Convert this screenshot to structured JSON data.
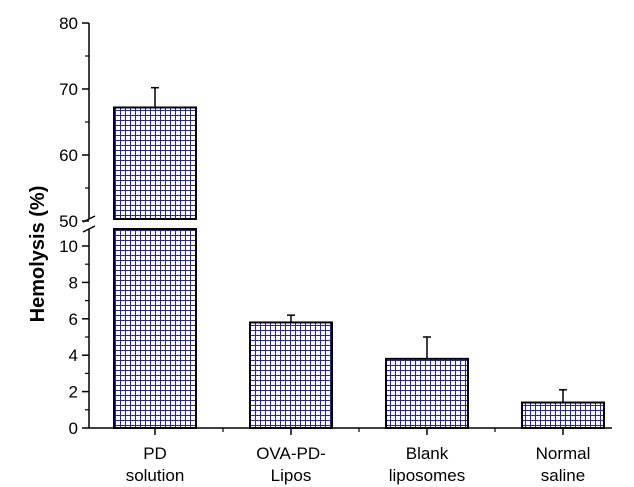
{
  "chart_data": {
    "type": "bar",
    "title": "",
    "xlabel": "",
    "ylabel": "Hemolysis (%)",
    "categories": [
      [
        "PD",
        "solution"
      ],
      [
        "OVA-PD-",
        "Lipos"
      ],
      [
        "Blank",
        "liposomes"
      ],
      [
        "Normal",
        "saline"
      ]
    ],
    "values": [
      67.2,
      5.8,
      3.8,
      1.4
    ],
    "errors": [
      3.0,
      0.4,
      1.2,
      0.7
    ],
    "y_axis_break": {
      "lower_segment": {
        "ylim": [
          0,
          11
        ],
        "ticks": [
          0,
          2,
          4,
          6,
          8,
          10
        ]
      },
      "upper_segment": {
        "ylim": [
          50,
          80
        ],
        "ticks": [
          50,
          60,
          70,
          80
        ]
      }
    },
    "bar_fill": "crosshatch grid",
    "bar_color": "#2222cc",
    "bar_edge_color": "#000000",
    "grid": false,
    "legend": "none"
  }
}
